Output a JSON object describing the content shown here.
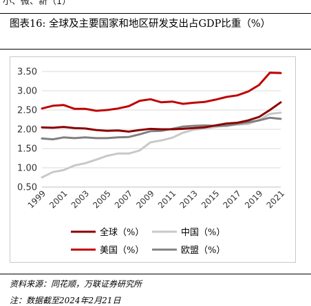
{
  "header": {
    "fragment": "小、微、新（1）"
  },
  "figure": {
    "title": "图表16:  全球及主要国家和地区研发支出占GDP比重（%）",
    "source": "资料来源：同花顺，万联证券研究所",
    "note": "注：数据截至2024年2月21日"
  },
  "chart_data": {
    "type": "line",
    "x": [
      1999,
      2000,
      2001,
      2002,
      2003,
      2004,
      2005,
      2006,
      2007,
      2008,
      2009,
      2010,
      2011,
      2012,
      2013,
      2014,
      2015,
      2016,
      2017,
      2018,
      2019,
      2020,
      2021
    ],
    "xticks": [
      "1999",
      "2001",
      "2003",
      "2005",
      "2007",
      "2009",
      "2011",
      "2013",
      "2015",
      "2017",
      "2019",
      "2021"
    ],
    "ylim": [
      0.5,
      3.5
    ],
    "yticks": [
      "0.50",
      "1.00",
      "1.50",
      "2.00",
      "2.50",
      "3.00",
      "3.50"
    ],
    "grid": true,
    "legend_position": "bottom",
    "series": [
      {
        "name": "全球（%）",
        "color": "#8b0000",
        "values": [
          2.05,
          2.04,
          2.06,
          2.03,
          2.02,
          1.98,
          1.96,
          1.97,
          1.94,
          1.98,
          2.01,
          2.0,
          2.0,
          2.01,
          2.03,
          2.05,
          2.1,
          2.15,
          2.17,
          2.23,
          2.32,
          2.5,
          2.7
        ]
      },
      {
        "name": "中国（%）",
        "color": "#c8c8c8",
        "values": [
          0.75,
          0.89,
          0.94,
          1.06,
          1.12,
          1.21,
          1.31,
          1.37,
          1.37,
          1.45,
          1.66,
          1.71,
          1.78,
          1.91,
          1.99,
          2.02,
          2.06,
          2.1,
          2.12,
          2.14,
          2.24,
          2.4,
          2.43
        ]
      },
      {
        "name": "美国（%）",
        "color": "#c00000",
        "values": [
          2.54,
          2.61,
          2.63,
          2.53,
          2.53,
          2.48,
          2.5,
          2.54,
          2.6,
          2.74,
          2.78,
          2.7,
          2.72,
          2.66,
          2.69,
          2.71,
          2.77,
          2.84,
          2.88,
          2.98,
          3.15,
          3.47,
          3.46
        ]
      },
      {
        "name": "欧盟（%）",
        "color": "#808080",
        "values": [
          1.76,
          1.74,
          1.79,
          1.77,
          1.79,
          1.77,
          1.77,
          1.79,
          1.8,
          1.87,
          1.95,
          1.96,
          2.01,
          2.07,
          2.09,
          2.1,
          2.09,
          2.09,
          2.14,
          2.18,
          2.23,
          2.3,
          2.27
        ]
      }
    ]
  }
}
